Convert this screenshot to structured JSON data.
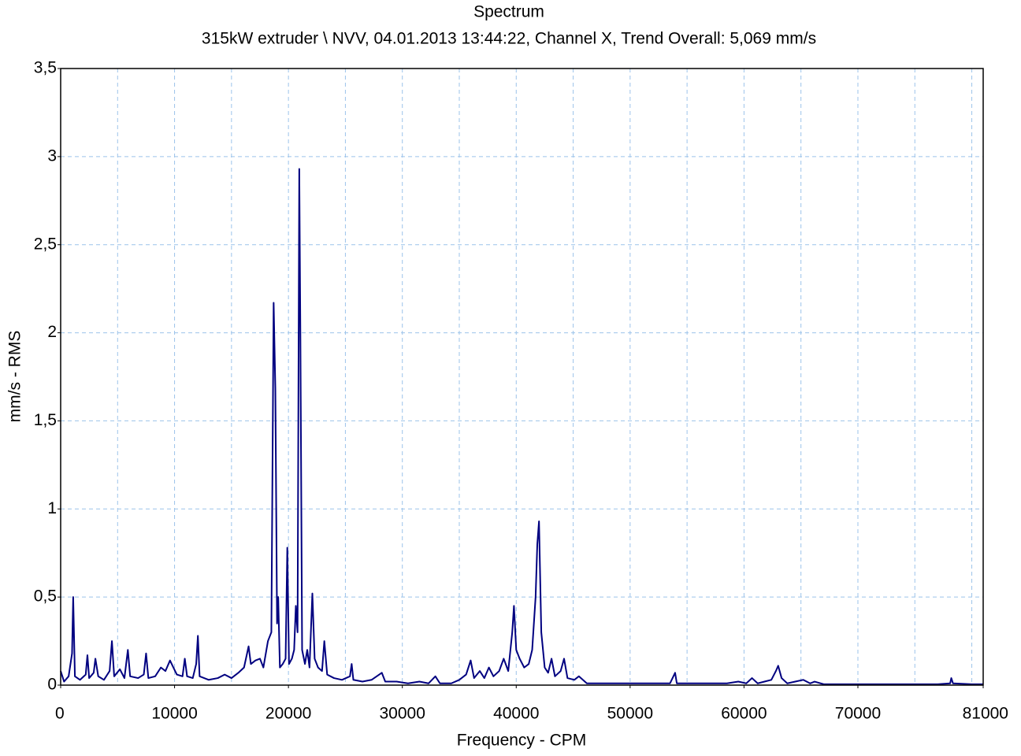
{
  "chart_data": {
    "type": "line",
    "title": "Spectrum",
    "subtitle": "315kW extruder \\ NVV, 04.01.2013 13:44:22, Channel X, Trend Overall: 5,069 mm/s",
    "x_label": "Frequency - CPM",
    "y_label": "mm/s - RMS",
    "color": "#000080",
    "grid": true,
    "xlim": [
      0,
      81000
    ],
    "ylim": [
      0,
      3.5
    ],
    "xticks": [
      0,
      10000,
      20000,
      30000,
      40000,
      50000,
      60000,
      70000,
      81000
    ],
    "xgrid": [
      5000,
      10000,
      15000,
      20000,
      25000,
      30000,
      35000,
      40000,
      45000,
      50000,
      55000,
      60000,
      65000,
      70000,
      75000,
      80000
    ],
    "yticks": [
      0,
      {
        "value": 0.5,
        "label": "0,5"
      },
      1,
      {
        "value": 1.5,
        "label": "1,5"
      },
      2,
      {
        "value": 2.5,
        "label": "2,5"
      },
      3,
      {
        "value": 3.5,
        "label": "3,5"
      }
    ],
    "x": [
      0,
      300,
      700,
      1000,
      1100,
      1250,
      1700,
      2200,
      2350,
      2500,
      2900,
      3050,
      3300,
      3800,
      4300,
      4500,
      4700,
      5200,
      5600,
      5900,
      6100,
      6800,
      7300,
      7500,
      7700,
      8300,
      8800,
      9200,
      9600,
      9900,
      10200,
      10700,
      10900,
      11100,
      11600,
      11900,
      12050,
      12200,
      13000,
      13800,
      14400,
      15000,
      15600,
      16100,
      16500,
      16700,
      17100,
      17500,
      17800,
      18200,
      18500,
      18700,
      18850,
      19000,
      19100,
      19250,
      19500,
      19750,
      19900,
      20050,
      20300,
      20500,
      20650,
      20800,
      20950,
      21050,
      21200,
      21450,
      21650,
      21850,
      22100,
      22300,
      22600,
      22950,
      23150,
      23400,
      24000,
      24700,
      25400,
      25550,
      25700,
      26500,
      27300,
      28200,
      28500,
      29500,
      30500,
      31500,
      32300,
      32900,
      33300,
      34300,
      35000,
      35600,
      36000,
      36300,
      36800,
      37200,
      37600,
      38000,
      38500,
      38900,
      39300,
      39650,
      39800,
      40000,
      40300,
      40700,
      41100,
      41400,
      41700,
      41850,
      42000,
      42200,
      42500,
      42800,
      43100,
      43400,
      43900,
      44200,
      44500,
      45100,
      45500,
      46200,
      47500,
      49000,
      50500,
      52000,
      53500,
      53950,
      54100,
      55500,
      57000,
      58500,
      59500,
      60200,
      60700,
      61200,
      61800,
      62400,
      62800,
      63000,
      63300,
      63800,
      64500,
      65200,
      65800,
      66200,
      67000,
      69000,
      71000,
      73000,
      75000,
      77000,
      78100,
      78200,
      78350,
      80000,
      81000
    ],
    "values": [
      0.08,
      0.02,
      0.05,
      0.18,
      0.5,
      0.05,
      0.03,
      0.06,
      0.17,
      0.04,
      0.07,
      0.15,
      0.05,
      0.03,
      0.08,
      0.25,
      0.05,
      0.09,
      0.04,
      0.2,
      0.05,
      0.04,
      0.06,
      0.18,
      0.04,
      0.05,
      0.1,
      0.08,
      0.14,
      0.1,
      0.06,
      0.05,
      0.15,
      0.05,
      0.04,
      0.12,
      0.28,
      0.05,
      0.03,
      0.04,
      0.06,
      0.04,
      0.07,
      0.1,
      0.22,
      0.12,
      0.14,
      0.15,
      0.1,
      0.25,
      0.3,
      2.17,
      1.68,
      0.35,
      0.5,
      0.1,
      0.12,
      0.15,
      0.78,
      0.12,
      0.15,
      0.2,
      0.45,
      0.3,
      2.93,
      1.96,
      0.2,
      0.12,
      0.2,
      0.1,
      0.52,
      0.15,
      0.1,
      0.08,
      0.25,
      0.06,
      0.04,
      0.03,
      0.05,
      0.12,
      0.03,
      0.02,
      0.03,
      0.07,
      0.02,
      0.02,
      0.01,
      0.02,
      0.01,
      0.05,
      0.01,
      0.01,
      0.03,
      0.06,
      0.14,
      0.04,
      0.08,
      0.04,
      0.1,
      0.05,
      0.08,
      0.15,
      0.08,
      0.3,
      0.45,
      0.2,
      0.15,
      0.1,
      0.12,
      0.2,
      0.5,
      0.8,
      0.93,
      0.3,
      0.1,
      0.07,
      0.15,
      0.05,
      0.08,
      0.15,
      0.04,
      0.03,
      0.05,
      0.01,
      0.01,
      0.01,
      0.01,
      0.01,
      0.01,
      0.07,
      0.01,
      0.01,
      0.01,
      0.01,
      0.02,
      0.01,
      0.04,
      0.01,
      0.02,
      0.03,
      0.08,
      0.11,
      0.04,
      0.01,
      0.02,
      0.03,
      0.01,
      0.02,
      0.005,
      0.005,
      0.005,
      0.005,
      0.005,
      0.005,
      0.01,
      0.04,
      0.01,
      0.005,
      0.005
    ]
  }
}
